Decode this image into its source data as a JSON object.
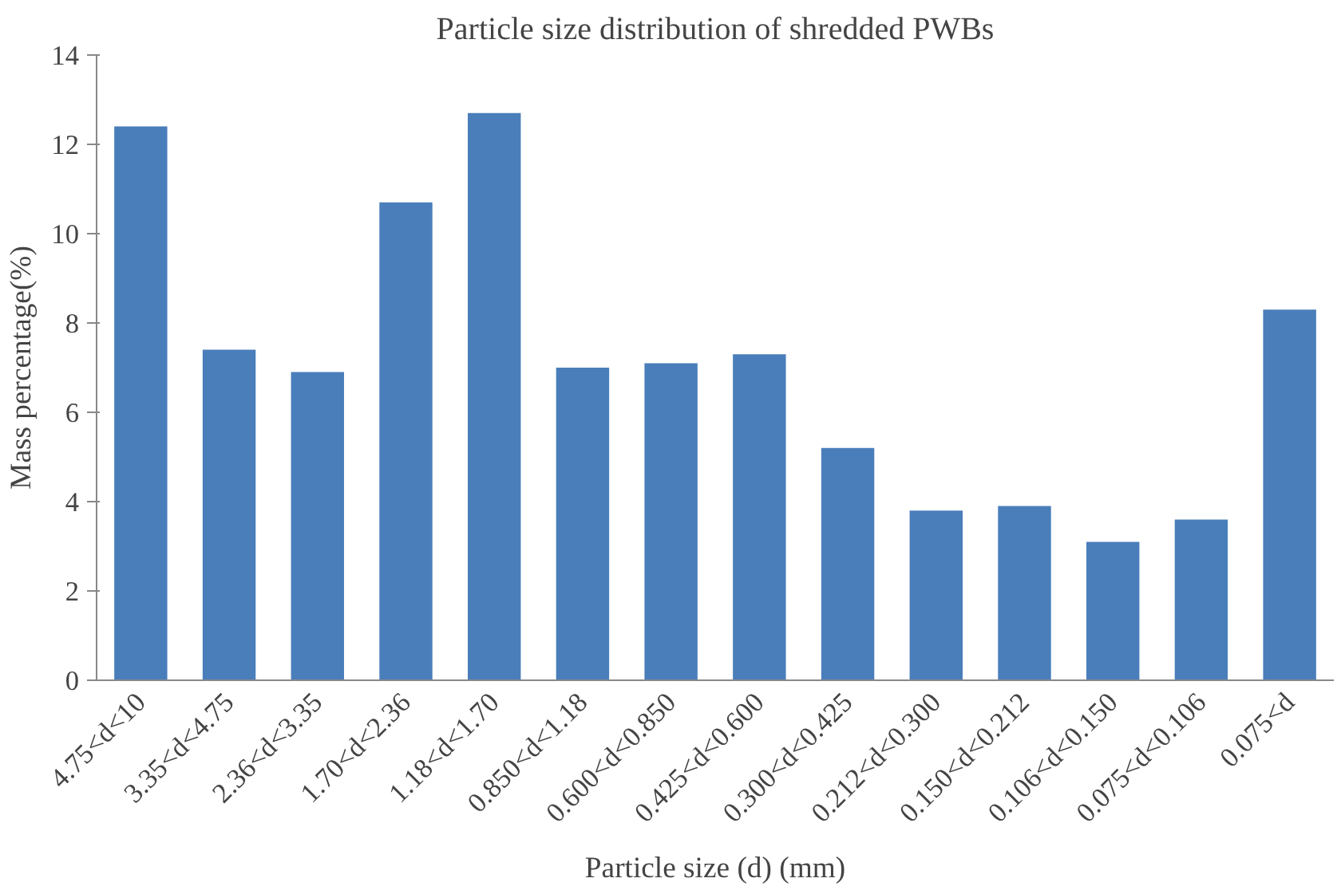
{
  "chart_data": {
    "type": "bar",
    "title": "Particle size distribution of shredded PWBs",
    "xlabel": "Particle size (d) (mm)",
    "ylabel": "Mass percentage(%)",
    "categories": [
      "4.75<d<10",
      "3.35<d<4.75",
      "2.36<d<3.35",
      "1.70<d<2.36",
      "1.18<d<1.70",
      "0.850<d<1.18",
      "0.600<d<0.850",
      "0.425<d<0.600",
      "0.300<d<0.425",
      "0.212<d<0.300",
      "0.150<d<0.212",
      "0.106<d<0.150",
      "0.075<d<0.106",
      "0.075<d"
    ],
    "values": [
      12.4,
      7.4,
      6.9,
      10.7,
      12.7,
      7.0,
      7.1,
      7.3,
      5.2,
      3.8,
      3.9,
      3.1,
      3.6,
      8.3
    ],
    "color": "#4a7ebb",
    "ylim": [
      0,
      14
    ],
    "yticks": [
      0,
      2,
      4,
      6,
      8,
      10,
      12,
      14
    ],
    "grid": false
  }
}
